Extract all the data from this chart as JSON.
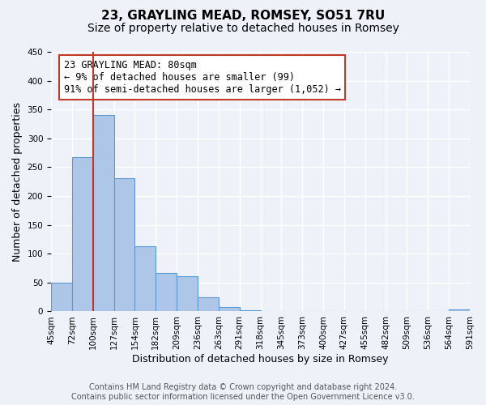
{
  "title": "23, GRAYLING MEAD, ROMSEY, SO51 7RU",
  "subtitle": "Size of property relative to detached houses in Romsey",
  "xlabel": "Distribution of detached houses by size in Romsey",
  "ylabel": "Number of detached properties",
  "bar_values": [
    50,
    267,
    340,
    231,
    113,
    67,
    61,
    25,
    7,
    2,
    1,
    0,
    0,
    0,
    0,
    0,
    0,
    0,
    0,
    3
  ],
  "bin_labels": [
    "45sqm",
    "72sqm",
    "100sqm",
    "127sqm",
    "154sqm",
    "182sqm",
    "209sqm",
    "236sqm",
    "263sqm",
    "291sqm",
    "318sqm",
    "345sqm",
    "373sqm",
    "400sqm",
    "427sqm",
    "455sqm",
    "482sqm",
    "509sqm",
    "536sqm",
    "564sqm",
    "591sqm"
  ],
  "bar_color": "#aec6e8",
  "bar_edge_color": "#5b9bd5",
  "vline_color": "#c0392b",
  "vline_position": 1.5,
  "annotation_text": "23 GRAYLING MEAD: 80sqm\n← 9% of detached houses are smaller (99)\n91% of semi-detached houses are larger (1,052) →",
  "annotation_box_color": "#ffffff",
  "annotation_box_edge_color": "#c0392b",
  "ylim": [
    0,
    450
  ],
  "yticks": [
    0,
    50,
    100,
    150,
    200,
    250,
    300,
    350,
    400,
    450
  ],
  "footer_text": "Contains HM Land Registry data © Crown copyright and database right 2024.\nContains public sector information licensed under the Open Government Licence v3.0.",
  "background_color": "#eef2f8",
  "plot_bg_color": "#eef2f8",
  "grid_color": "#ffffff",
  "title_fontsize": 11,
  "subtitle_fontsize": 10,
  "xlabel_fontsize": 9,
  "ylabel_fontsize": 9,
  "tick_fontsize": 7.5,
  "annotation_fontsize": 8.5,
  "footer_fontsize": 7
}
